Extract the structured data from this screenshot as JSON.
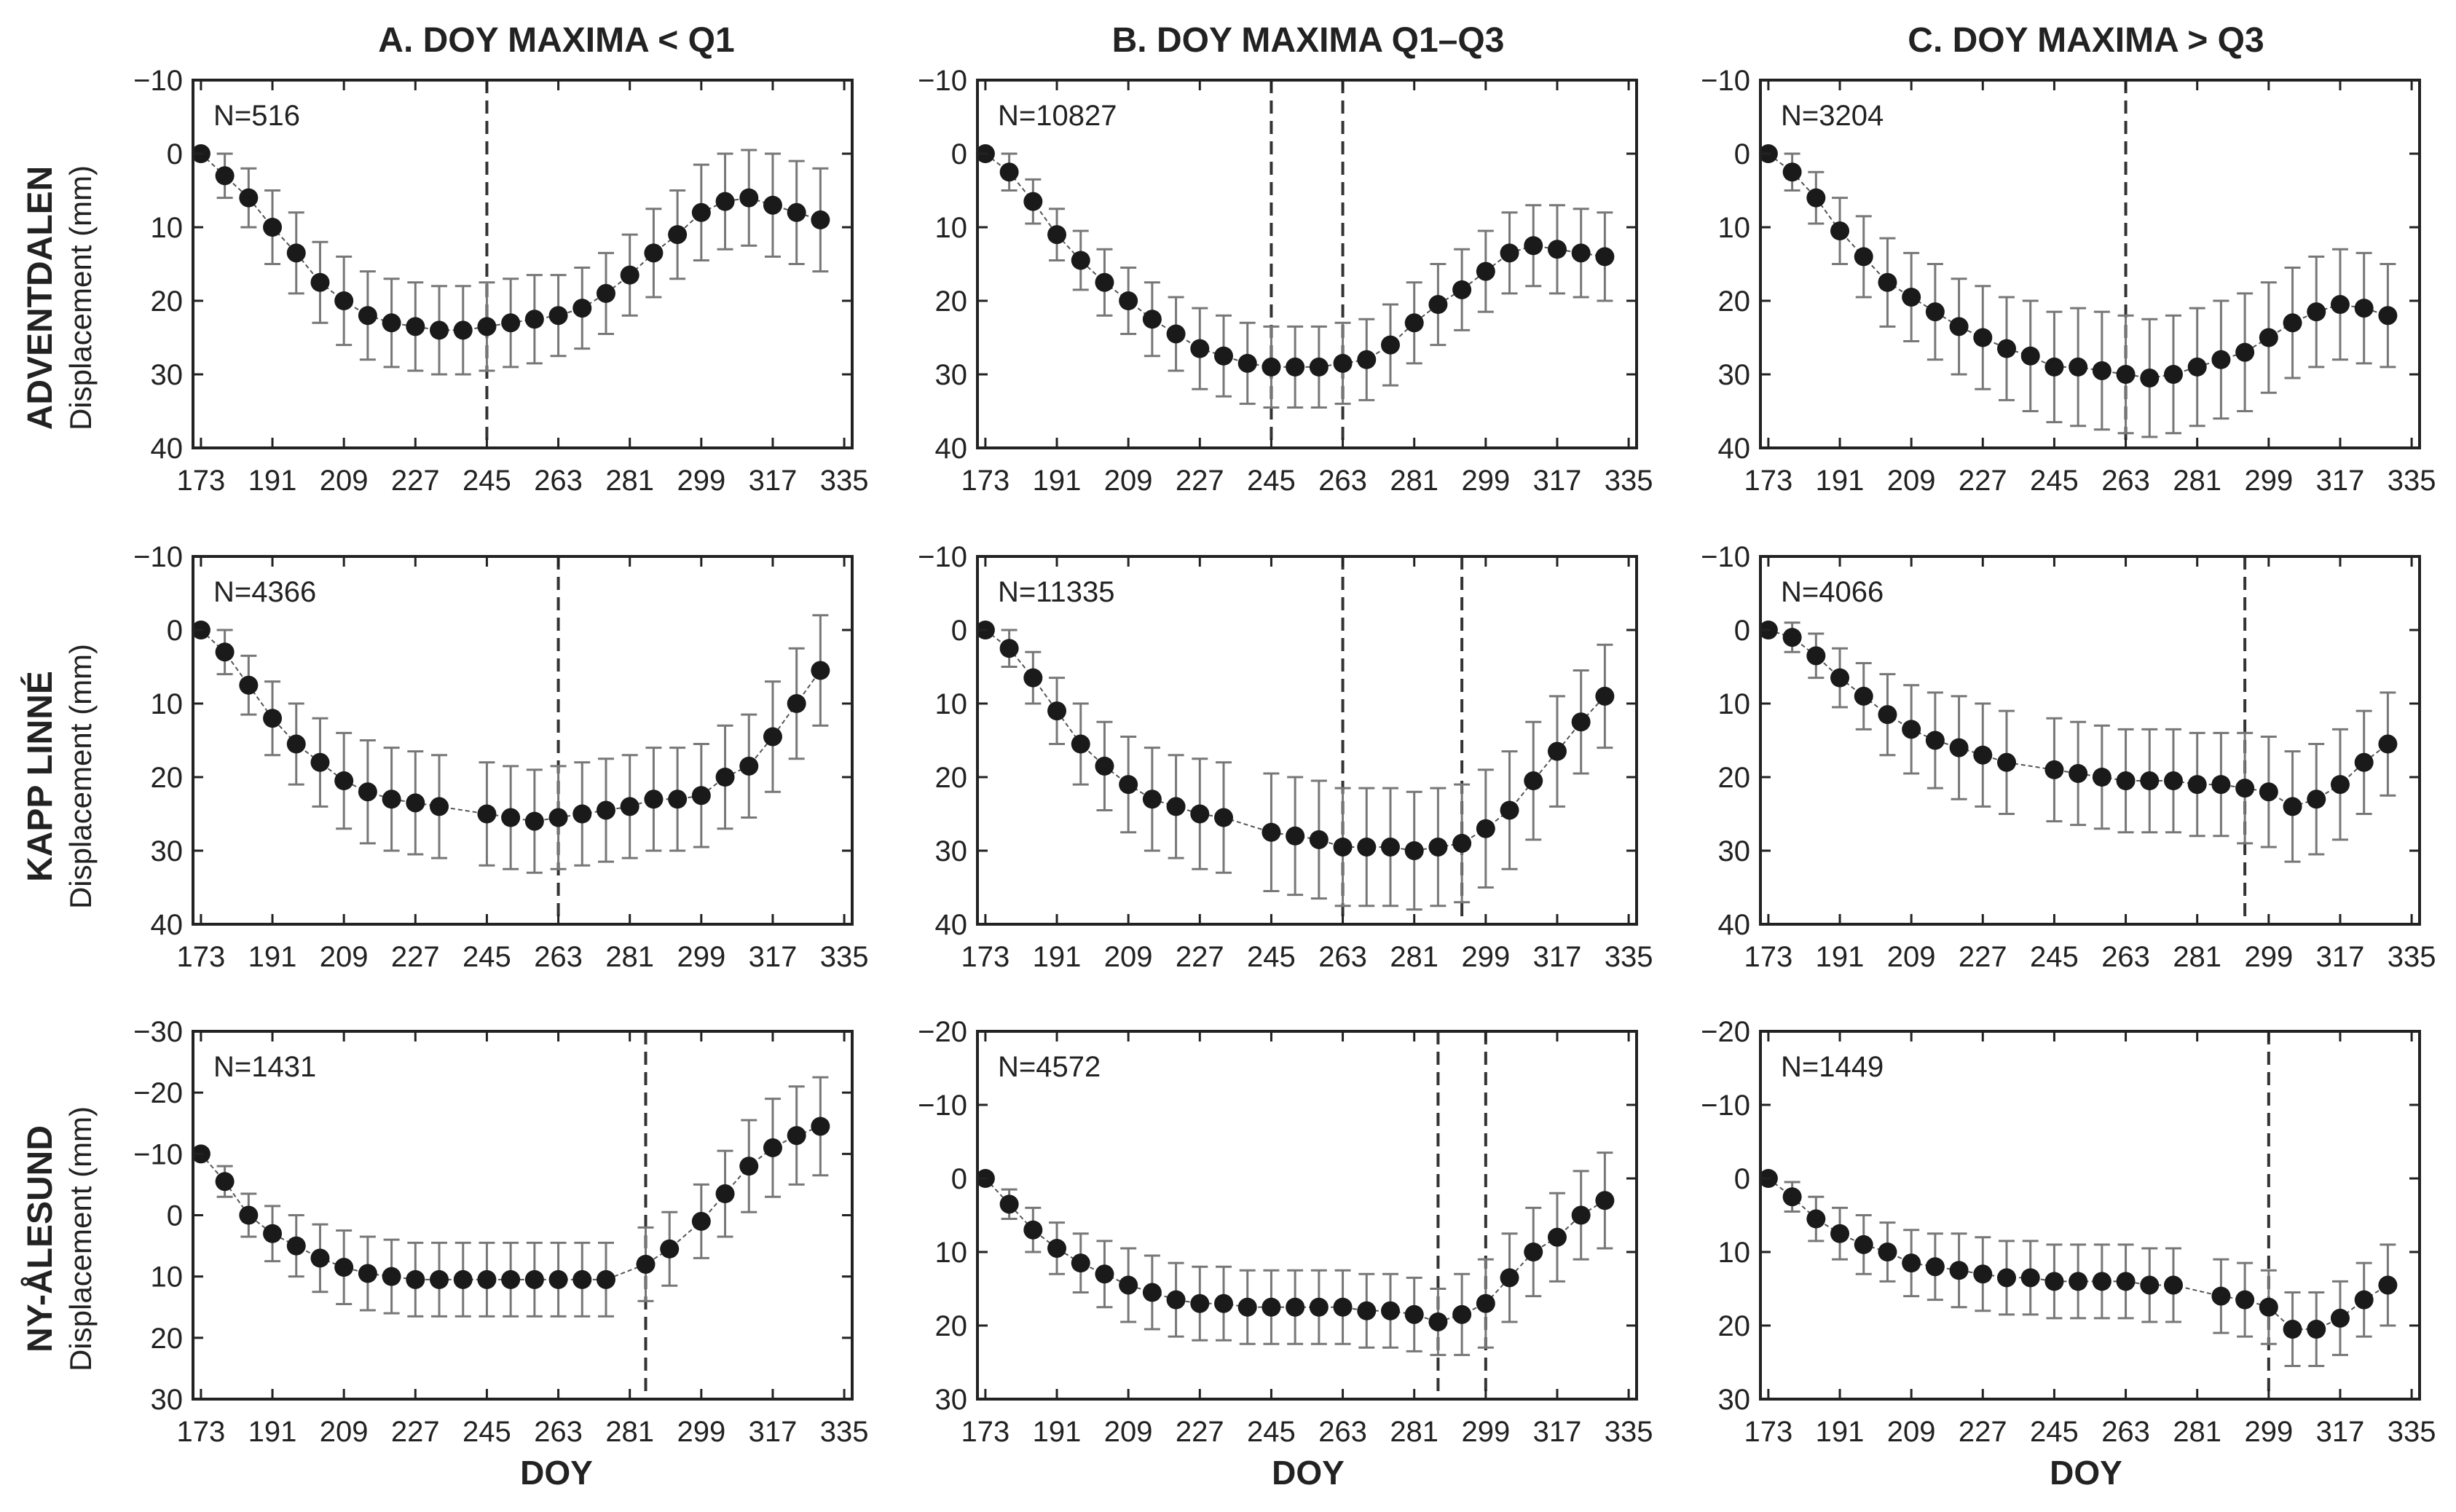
{
  "chart_data": {
    "type": "scatter",
    "column_titles": [
      "A. DOY MAXIMA < Q1",
      "B. DOY MAXIMA Q1–Q3",
      "C. DOY MAXIMA > Q3"
    ],
    "row_titles": [
      "ADVENTDALEN",
      "KAPP LINNÉ",
      "NY-ÅLESUND"
    ],
    "ylabel": "Displacement (mm)",
    "xlabel": "DOY",
    "x_ticks": [
      173,
      191,
      209,
      227,
      245,
      263,
      281,
      299,
      317,
      335
    ],
    "xlim": [
      171,
      337
    ],
    "panels": [
      {
        "row": 0,
        "col": 0,
        "n_label": "N=516",
        "ylim": [
          -10,
          40
        ],
        "y_ticks": [
          -10,
          0,
          10,
          20,
          30,
          40
        ],
        "vlines": [
          245
        ],
        "x": [
          173,
          179,
          185,
          191,
          197,
          203,
          209,
          215,
          221,
          227,
          233,
          239,
          245,
          251,
          257,
          263,
          269,
          275,
          281,
          287,
          293,
          299,
          305,
          311,
          317,
          323,
          329
        ],
        "y": [
          0,
          3,
          6,
          10,
          13.5,
          17.5,
          20,
          22,
          23,
          23.5,
          24,
          24,
          23.5,
          23,
          22.5,
          22,
          21,
          19,
          16.5,
          13.5,
          11,
          8,
          6.5,
          6,
          7,
          8,
          9
        ],
        "err": [
          0,
          3,
          4,
          5,
          5.5,
          5.5,
          6,
          6,
          6,
          6,
          6,
          6,
          6,
          6,
          6,
          5.5,
          5.5,
          5.5,
          5.5,
          6,
          6,
          6.5,
          6.5,
          6.5,
          7,
          7,
          7
        ]
      },
      {
        "row": 0,
        "col": 1,
        "n_label": "N=10827",
        "ylim": [
          -10,
          40
        ],
        "y_ticks": [
          -10,
          0,
          10,
          20,
          30,
          40
        ],
        "vlines": [
          245,
          263
        ],
        "x": [
          173,
          179,
          185,
          191,
          197,
          203,
          209,
          215,
          221,
          227,
          233,
          239,
          245,
          251,
          257,
          263,
          269,
          275,
          281,
          287,
          293,
          299,
          305,
          311,
          317,
          323,
          329
        ],
        "y": [
          0,
          2.5,
          6.5,
          11,
          14.5,
          17.5,
          20,
          22.5,
          24.5,
          26.5,
          27.5,
          28.5,
          29,
          29,
          29,
          28.5,
          28,
          26,
          23,
          20.5,
          18.5,
          16,
          13.5,
          12.5,
          13,
          13.5,
          14
        ],
        "err": [
          0,
          2.5,
          3,
          3.5,
          4,
          4.5,
          4.5,
          5,
          5,
          5.5,
          5.5,
          5.5,
          5.5,
          5.5,
          5.5,
          5.5,
          5.5,
          5.5,
          5.5,
          5.5,
          5.5,
          5.5,
          5.5,
          5.5,
          6,
          6,
          6
        ]
      },
      {
        "row": 0,
        "col": 2,
        "n_label": "N=3204",
        "ylim": [
          -10,
          40
        ],
        "y_ticks": [
          -10,
          0,
          10,
          20,
          30,
          40
        ],
        "vlines": [
          263
        ],
        "x": [
          173,
          179,
          185,
          191,
          197,
          203,
          209,
          215,
          221,
          227,
          233,
          239,
          245,
          251,
          257,
          263,
          269,
          275,
          281,
          287,
          293,
          299,
          305,
          311,
          317,
          323,
          329
        ],
        "y": [
          0,
          2.5,
          6,
          10.5,
          14,
          17.5,
          19.5,
          21.5,
          23.5,
          25,
          26.5,
          27.5,
          29,
          29,
          29.5,
          30,
          30.5,
          30,
          29,
          28,
          27,
          25,
          23,
          21.5,
          20.5,
          21,
          22
        ],
        "err": [
          0,
          2.5,
          3.5,
          4.5,
          5.5,
          6,
          6,
          6.5,
          6.5,
          7,
          7,
          7.5,
          7.5,
          8,
          8,
          8,
          8,
          8,
          8,
          8,
          8,
          7.5,
          7.5,
          7.5,
          7.5,
          7.5,
          7
        ]
      },
      {
        "row": 1,
        "col": 0,
        "n_label": "N=4366",
        "ylim": [
          -10,
          40
        ],
        "y_ticks": [
          -10,
          0,
          10,
          20,
          30,
          40
        ],
        "vlines": [
          263
        ],
        "x": [
          173,
          179,
          185,
          191,
          197,
          203,
          209,
          215,
          221,
          227,
          233,
          245,
          251,
          257,
          263,
          269,
          275,
          281,
          287,
          293,
          299,
          305,
          311,
          317,
          323,
          329
        ],
        "y": [
          0,
          3,
          7.5,
          12,
          15.5,
          18,
          20.5,
          22,
          23,
          23.5,
          24,
          25,
          25.5,
          26,
          25.5,
          25,
          24.5,
          24,
          23,
          23,
          22.5,
          20,
          18.5,
          14.5,
          10,
          5.5
        ],
        "err": [
          0,
          3,
          4,
          5,
          5.5,
          6,
          6.5,
          7,
          7,
          7,
          7,
          7,
          7,
          7,
          7,
          7,
          7,
          7,
          7,
          7,
          7,
          7,
          7,
          7.5,
          7.5,
          7.5
        ]
      },
      {
        "row": 1,
        "col": 1,
        "n_label": "N=11335",
        "ylim": [
          -10,
          40
        ],
        "y_ticks": [
          -10,
          0,
          10,
          20,
          30,
          40
        ],
        "vlines": [
          263,
          293
        ],
        "x": [
          173,
          179,
          185,
          191,
          197,
          203,
          209,
          215,
          221,
          227,
          233,
          245,
          251,
          257,
          263,
          269,
          275,
          281,
          287,
          293,
          299,
          305,
          311,
          317,
          323,
          329
        ],
        "y": [
          0,
          2.5,
          6.5,
          11,
          15.5,
          18.5,
          21,
          23,
          24,
          25,
          25.5,
          27.5,
          28,
          28.5,
          29.5,
          29.5,
          29.5,
          30,
          29.5,
          29,
          27,
          24.5,
          20.5,
          16.5,
          12.5,
          9
        ],
        "err": [
          0,
          2.5,
          3.5,
          4.5,
          5.5,
          6,
          6.5,
          7,
          7,
          7.5,
          7.5,
          8,
          8,
          8,
          8,
          8,
          8,
          8,
          8,
          8,
          8,
          8,
          8,
          7.5,
          7,
          7
        ]
      },
      {
        "row": 1,
        "col": 2,
        "n_label": "N=4066",
        "ylim": [
          -10,
          40
        ],
        "y_ticks": [
          -10,
          0,
          10,
          20,
          30,
          40
        ],
        "vlines": [
          293
        ],
        "x": [
          173,
          179,
          185,
          191,
          197,
          203,
          209,
          215,
          221,
          227,
          233,
          245,
          251,
          257,
          263,
          269,
          275,
          281,
          287,
          293,
          299,
          305,
          311,
          317,
          323,
          329
        ],
        "y": [
          0,
          1,
          3.5,
          6.5,
          9,
          11.5,
          13.5,
          15,
          16,
          17,
          18,
          19,
          19.5,
          20,
          20.5,
          20.5,
          20.5,
          21,
          21,
          21.5,
          22,
          24,
          23,
          21,
          18,
          15.5
        ],
        "err": [
          0,
          2,
          3,
          4,
          4.5,
          5.5,
          6,
          6.5,
          7,
          7,
          7,
          7,
          7,
          7,
          7,
          7,
          7,
          7,
          7,
          7.5,
          7.5,
          7.5,
          7.5,
          7.5,
          7,
          7
        ]
      },
      {
        "row": 2,
        "col": 0,
        "n_label": "N=1431",
        "ylim": [
          -30,
          30
        ],
        "y_ticks": [
          -30,
          -20,
          -10,
          0,
          10,
          20,
          30
        ],
        "vlines": [
          285
        ],
        "x": [
          173,
          179,
          185,
          191,
          197,
          203,
          209,
          215,
          221,
          227,
          233,
          239,
          245,
          251,
          257,
          263,
          269,
          275,
          285,
          291,
          299,
          305,
          311,
          317,
          323,
          329
        ],
        "y": [
          -10,
          -5.5,
          0,
          3,
          5,
          7,
          8.5,
          9.5,
          10,
          10.5,
          10.5,
          10.5,
          10.5,
          10.5,
          10.5,
          10.5,
          10.5,
          10.5,
          8,
          5.5,
          1,
          -3.5,
          -8,
          -11,
          -13,
          -14.5
        ],
        "err": [
          0,
          2.5,
          3.5,
          4.5,
          5,
          5.5,
          6,
          6,
          6,
          6,
          6,
          6,
          6,
          6,
          6,
          6,
          6,
          6,
          6,
          6,
          6,
          7,
          7.5,
          8,
          8,
          8
        ]
      },
      {
        "row": 2,
        "col": 1,
        "n_label": "N=4572",
        "ylim": [
          -20,
          30
        ],
        "y_ticks": [
          -20,
          -10,
          0,
          10,
          20,
          30
        ],
        "vlines": [
          287,
          299
        ],
        "x": [
          173,
          179,
          185,
          191,
          197,
          203,
          209,
          215,
          221,
          227,
          233,
          239,
          245,
          251,
          257,
          263,
          269,
          275,
          281,
          287,
          293,
          299,
          305,
          311,
          317,
          323,
          329
        ],
        "y": [
          0,
          3.5,
          7,
          9.5,
          11.5,
          13,
          14.5,
          15.5,
          16.5,
          17,
          17,
          17.5,
          17.5,
          17.5,
          17.5,
          17.5,
          18,
          18,
          18.5,
          19.5,
          18.5,
          17,
          13.5,
          10,
          8,
          5,
          3
        ],
        "err": [
          0,
          2,
          3,
          3.5,
          4,
          4.5,
          5,
          5,
          5,
          5,
          5,
          5,
          5,
          5,
          5,
          5,
          5,
          5,
          5,
          4.5,
          5.5,
          6,
          6,
          6,
          6,
          6,
          6.5
        ]
      },
      {
        "row": 2,
        "col": 2,
        "n_label": "N=1449",
        "ylim": [
          -20,
          30
        ],
        "y_ticks": [
          -20,
          -10,
          0,
          10,
          20,
          30
        ],
        "vlines": [
          299
        ],
        "x": [
          173,
          179,
          185,
          191,
          197,
          203,
          209,
          215,
          221,
          227,
          233,
          239,
          245,
          251,
          257,
          263,
          269,
          275,
          287,
          293,
          299,
          305,
          311,
          317,
          323,
          329
        ],
        "y": [
          0,
          2.5,
          5.5,
          7.5,
          9,
          10,
          11.5,
          12,
          12.5,
          13,
          13.5,
          13.5,
          14,
          14,
          14,
          14,
          14.5,
          14.5,
          16,
          16.5,
          17.5,
          20.5,
          20.5,
          19,
          16.5,
          14.5
        ],
        "err": [
          0,
          2,
          3,
          3.5,
          4,
          4,
          4.5,
          4.5,
          5,
          5,
          5,
          5,
          5,
          5,
          5,
          5,
          5,
          5,
          5,
          5,
          5,
          5,
          5,
          5,
          5,
          5.5
        ]
      }
    ]
  }
}
